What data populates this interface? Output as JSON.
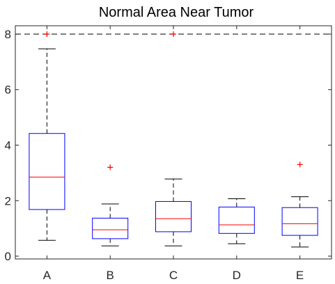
{
  "chart_data": {
    "type": "box",
    "title": "Normal Area Near Tumor",
    "xlabel": "",
    "ylabel": "",
    "categories": [
      "A",
      "B",
      "C",
      "D",
      "E"
    ],
    "ylim": [
      -0.1,
      8.3
    ],
    "yticks": [
      0,
      2,
      4,
      6,
      8
    ],
    "reference_line": {
      "y": 8,
      "style": "dashed",
      "color": "#333333"
    },
    "grid": false,
    "colors": {
      "box": "#0000ff",
      "median": "#ff0000",
      "whisker": "#000000",
      "outlier": "#ff0000",
      "axis": "#262626"
    },
    "boxes": [
      {
        "name": "A",
        "whisker_low": 0.57,
        "q1": 1.68,
        "median": 2.85,
        "q3": 4.42,
        "whisker_high": 7.47,
        "outliers": [
          8.0
        ]
      },
      {
        "name": "B",
        "whisker_low": 0.37,
        "q1": 0.63,
        "median": 0.95,
        "q3": 1.37,
        "whisker_high": 1.88,
        "outliers": [
          3.2
        ]
      },
      {
        "name": "C",
        "whisker_low": 0.37,
        "q1": 0.88,
        "median": 1.35,
        "q3": 1.97,
        "whisker_high": 2.78,
        "outliers": [
          8.0
        ]
      },
      {
        "name": "D",
        "whisker_low": 0.45,
        "q1": 0.82,
        "median": 1.13,
        "q3": 1.77,
        "whisker_high": 2.07,
        "outliers": []
      },
      {
        "name": "E",
        "whisker_low": 0.33,
        "q1": 0.75,
        "median": 1.17,
        "q3": 1.75,
        "whisker_high": 2.14,
        "outliers": [
          3.3
        ]
      }
    ]
  }
}
